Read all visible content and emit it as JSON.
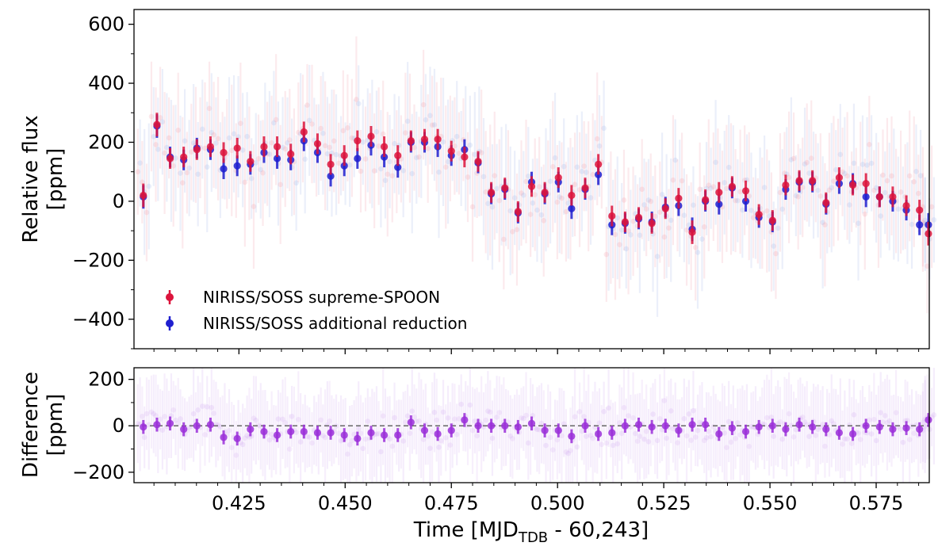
{
  "chart_data": [
    {
      "type": "scatter",
      "panel": "top",
      "ylabel_lines": [
        "Relative flux",
        "[ppm]"
      ],
      "ylim": [
        -500,
        650
      ],
      "yticks": [
        600,
        400,
        200,
        0,
        -200,
        -400
      ],
      "ytick_labels": [
        "600",
        "400",
        "200",
        "0",
        "−200",
        "−400"
      ],
      "legend_position": "lower-left",
      "series": [
        {
          "name": "NIRISS/SOSS supreme-SPOON",
          "color": "#dc143c",
          "x": [
            0.4025,
            0.4057,
            0.4088,
            0.412,
            0.4151,
            0.4183,
            0.4214,
            0.4246,
            0.4277,
            0.4309,
            0.434,
            0.4372,
            0.4403,
            0.4435,
            0.4466,
            0.4498,
            0.4529,
            0.4561,
            0.4592,
            0.4624,
            0.4655,
            0.4687,
            0.4718,
            0.475,
            0.4781,
            0.4813,
            0.4844,
            0.4876,
            0.4907,
            0.4939,
            0.497,
            0.5002,
            0.5033,
            0.5065,
            0.5096,
            0.5128,
            0.5159,
            0.5191,
            0.5222,
            0.5254,
            0.5285,
            0.5317,
            0.5348,
            0.538,
            0.5411,
            0.5443,
            0.5474,
            0.5506,
            0.5537,
            0.5569,
            0.56,
            0.5632,
            0.5663,
            0.5695,
            0.5726,
            0.5758,
            0.5789,
            0.5821,
            0.5852,
            0.5873
          ],
          "y": [
            20,
            260,
            145,
            150,
            175,
            185,
            165,
            180,
            135,
            185,
            185,
            160,
            235,
            195,
            125,
            155,
            205,
            220,
            185,
            155,
            205,
            210,
            210,
            170,
            150,
            135,
            30,
            45,
            -35,
            50,
            30,
            80,
            20,
            45,
            125,
            -50,
            -70,
            -55,
            -75,
            -25,
            10,
            -105,
            5,
            30,
            50,
            35,
            -45,
            -65,
            55,
            70,
            70,
            -5,
            80,
            55,
            60,
            15,
            15,
            -15,
            -30,
            -110
          ],
          "err": [
            40,
            40,
            35,
            35,
            35,
            35,
            35,
            35,
            35,
            35,
            35,
            35,
            35,
            35,
            35,
            35,
            35,
            35,
            35,
            35,
            35,
            35,
            35,
            35,
            35,
            35,
            35,
            35,
            35,
            35,
            35,
            35,
            35,
            35,
            35,
            35,
            35,
            35,
            35,
            35,
            35,
            40,
            35,
            35,
            35,
            35,
            35,
            35,
            35,
            35,
            35,
            35,
            35,
            35,
            35,
            35,
            35,
            35,
            35,
            40
          ]
        },
        {
          "name": "NIRISS/SOSS additional reduction",
          "color": "#1f1fcf",
          "x": [
            0.4025,
            0.4057,
            0.4088,
            0.412,
            0.4151,
            0.4183,
            0.4214,
            0.4246,
            0.4277,
            0.4309,
            0.434,
            0.4372,
            0.4403,
            0.4435,
            0.4466,
            0.4498,
            0.4529,
            0.4561,
            0.4592,
            0.4624,
            0.4655,
            0.4687,
            0.4718,
            0.475,
            0.4781,
            0.4813,
            0.4844,
            0.4876,
            0.4907,
            0.4939,
            0.497,
            0.5002,
            0.5033,
            0.5065,
            0.5096,
            0.5128,
            0.5159,
            0.5191,
            0.5222,
            0.5254,
            0.5285,
            0.5317,
            0.5348,
            0.538,
            0.5411,
            0.5443,
            0.5474,
            0.5506,
            0.5537,
            0.5569,
            0.56,
            0.5632,
            0.5663,
            0.5695,
            0.5726,
            0.5758,
            0.5789,
            0.5821,
            0.5852,
            0.5873
          ],
          "y": [
            15,
            255,
            150,
            140,
            180,
            175,
            110,
            120,
            125,
            165,
            145,
            140,
            205,
            165,
            85,
            120,
            145,
            190,
            150,
            115,
            200,
            200,
            185,
            155,
            175,
            130,
            25,
            40,
            -40,
            65,
            25,
            65,
            -25,
            40,
            90,
            -80,
            -75,
            -60,
            -70,
            -20,
            -15,
            -95,
            0,
            -10,
            45,
            0,
            -55,
            -70,
            40,
            65,
            65,
            -10,
            60,
            60,
            15,
            15,
            0,
            -30,
            -80,
            -80
          ],
          "err": [
            40,
            40,
            35,
            35,
            35,
            35,
            35,
            35,
            35,
            35,
            35,
            35,
            35,
            35,
            35,
            35,
            35,
            35,
            35,
            35,
            35,
            35,
            35,
            35,
            35,
            35,
            35,
            35,
            35,
            35,
            35,
            35,
            35,
            35,
            35,
            35,
            35,
            35,
            35,
            35,
            35,
            40,
            35,
            35,
            35,
            35,
            35,
            35,
            35,
            35,
            35,
            35,
            35,
            35,
            35,
            35,
            35,
            35,
            35,
            40
          ]
        }
      ]
    },
    {
      "type": "scatter",
      "panel": "bottom",
      "ylabel_lines": [
        "Difference",
        "[ppm]"
      ],
      "xlabel_main": "Time [MJD",
      "xlabel_sub": "TDB",
      "xlabel_rest": " - 60,243]",
      "xlim": [
        0.4003,
        0.5875
      ],
      "xticks": [
        0.425,
        0.45,
        0.475,
        0.5,
        0.525,
        0.55,
        0.575
      ],
      "xtick_labels": [
        "0.425",
        "0.450",
        "0.475",
        "0.500",
        "0.525",
        "0.550",
        "0.575"
      ],
      "ylim": [
        -245,
        250
      ],
      "yticks": [
        200,
        0,
        -200
      ],
      "ytick_labels": [
        "200",
        "0",
        "−200"
      ],
      "reference_line": 0,
      "series": [
        {
          "name": "Difference",
          "color": "#9b30d9",
          "x": [
            0.4025,
            0.4057,
            0.4088,
            0.412,
            0.4151,
            0.4183,
            0.4214,
            0.4246,
            0.4277,
            0.4309,
            0.434,
            0.4372,
            0.4403,
            0.4435,
            0.4466,
            0.4498,
            0.4529,
            0.4561,
            0.4592,
            0.4624,
            0.4655,
            0.4687,
            0.4718,
            0.475,
            0.4781,
            0.4813,
            0.4844,
            0.4876,
            0.4907,
            0.4939,
            0.497,
            0.5002,
            0.5033,
            0.5065,
            0.5096,
            0.5128,
            0.5159,
            0.5191,
            0.5222,
            0.5254,
            0.5285,
            0.5317,
            0.5348,
            0.538,
            0.5411,
            0.5443,
            0.5474,
            0.5506,
            0.5537,
            0.5569,
            0.56,
            0.5632,
            0.5663,
            0.5695,
            0.5726,
            0.5758,
            0.5789,
            0.5821,
            0.5852,
            0.5873
          ],
          "y": [
            -5,
            5,
            10,
            -15,
            0,
            5,
            -50,
            -55,
            -15,
            -25,
            -40,
            -25,
            -25,
            -30,
            -30,
            -40,
            -55,
            -30,
            -40,
            -40,
            15,
            -20,
            -35,
            -20,
            25,
            0,
            0,
            0,
            -5,
            10,
            -20,
            -20,
            -45,
            0,
            -35,
            -30,
            0,
            5,
            -5,
            0,
            -20,
            5,
            5,
            -35,
            -10,
            -25,
            -5,
            0,
            -15,
            5,
            -5,
            -15,
            -30,
            -35,
            0,
            -5,
            -15,
            -10,
            -15,
            25
          ],
          "err": [
            30,
            30,
            30,
            30,
            30,
            30,
            30,
            30,
            30,
            30,
            30,
            30,
            30,
            30,
            30,
            30,
            30,
            30,
            30,
            30,
            30,
            30,
            30,
            30,
            30,
            30,
            30,
            30,
            30,
            30,
            30,
            30,
            30,
            30,
            30,
            30,
            30,
            30,
            30,
            30,
            30,
            30,
            30,
            30,
            30,
            30,
            30,
            30,
            30,
            30,
            30,
            30,
            30,
            30,
            30,
            30,
            30,
            30,
            30,
            30
          ]
        }
      ]
    }
  ]
}
